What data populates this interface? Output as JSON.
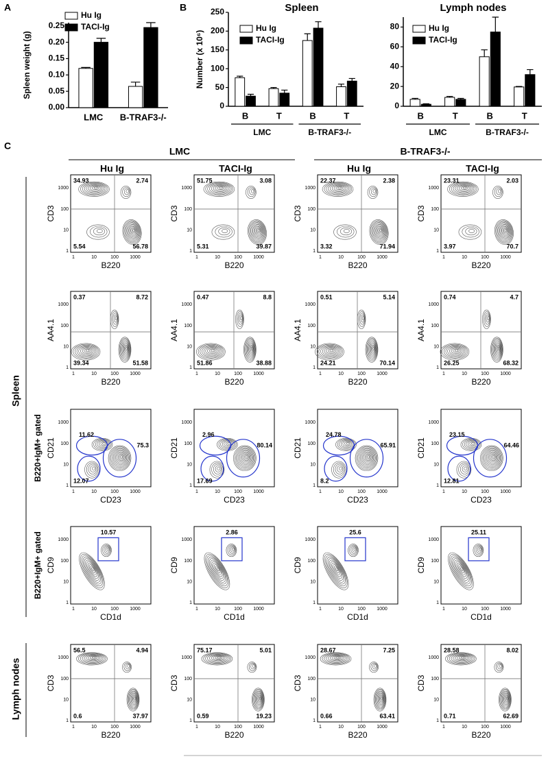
{
  "panel_labels": [
    "A",
    "B",
    "C"
  ],
  "chart_data": [
    {
      "type": "bar",
      "ylabel": "Spleen weight (g)",
      "categories": [
        "LMC",
        "B-TRAF3-/-"
      ],
      "ylim": [
        0,
        0.26
      ],
      "yticks": [
        {
          "value": 0,
          "label": "0.00"
        },
        {
          "value": 0.05,
          "label": "0.05"
        },
        {
          "value": 0.1,
          "label": "0.10"
        },
        {
          "value": 0.15,
          "label": "0.15"
        },
        {
          "value": 0.2,
          "label": "0.20"
        },
        {
          "value": 0.25,
          "label": "0.25"
        }
      ],
      "series": [
        {
          "name": "Hu Ig",
          "color": "#ffffff",
          "values": [
            0.12,
            0.065
          ],
          "errors": [
            0.003,
            0.013
          ]
        },
        {
          "name": "TACI-Ig",
          "color": "#000000",
          "values": [
            0.2,
            0.245
          ],
          "errors": [
            0.012,
            0.015
          ]
        }
      ]
    },
    {
      "type": "bar",
      "title": "Spleen",
      "ylabel": "Number (x 10⁶)",
      "categories": [
        "B",
        "T",
        "B",
        "T"
      ],
      "groups": [
        "LMC",
        "B-TRAF3-/-"
      ],
      "ylim": [
        0,
        250
      ],
      "yticks": [
        0,
        50,
        100,
        150,
        200,
        250
      ],
      "series": [
        {
          "name": "Hu Ig",
          "color": "#ffffff",
          "values": [
            76,
            47,
            175,
            52
          ],
          "errors": [
            4,
            3,
            18,
            7
          ]
        },
        {
          "name": "TACI-Ig",
          "color": "#000000",
          "values": [
            27,
            35,
            208,
            67
          ],
          "errors": [
            5,
            8,
            17,
            7
          ]
        }
      ]
    },
    {
      "type": "bar",
      "title": "Lymph nodes",
      "categories": [
        "B",
        "T",
        "B",
        "T"
      ],
      "groups": [
        "LMC",
        "B-TRAF3-/-"
      ],
      "ylim": [
        0,
        90
      ],
      "yticks": [
        0,
        20,
        40,
        60,
        80
      ],
      "series": [
        {
          "name": "Hu Ig",
          "color": "#ffffff",
          "values": [
            7,
            9,
            50,
            19.5
          ],
          "errors": [
            1,
            1,
            7,
            0.5
          ]
        },
        {
          "name": "TACI-Ig",
          "color": "#000000",
          "values": [
            2,
            7,
            75,
            32
          ],
          "errors": [
            0.5,
            1,
            15,
            5
          ]
        }
      ]
    }
  ],
  "flow": {
    "header_groups": [
      "LMC",
      "B-TRAF3-/-"
    ],
    "columns": [
      "Hu Ig",
      "TACI-Ig",
      "Hu Ig",
      "TACI-Ig"
    ],
    "tissues": [
      "Spleen",
      "Lymph nodes"
    ],
    "axis_ticks": [
      "1",
      "10",
      "100",
      "1000"
    ],
    "rows": [
      {
        "ylabel": "CD3",
        "xlabel": "B220",
        "plots": [
          {
            "labels": [
              "34.93",
              "2.74",
              "5.54",
              "56.78"
            ]
          },
          {
            "labels": [
              "51.75",
              "3.08",
              "5.31",
              "39.87"
            ]
          },
          {
            "labels": [
              "22.37",
              "2.38",
              "3.32",
              "71.94"
            ]
          },
          {
            "labels": [
              "23.31",
              "2.03",
              "3.97",
              "70.7"
            ]
          }
        ]
      },
      {
        "ylabel": "AA4.1",
        "xlabel": "B220",
        "plots": [
          {
            "labels": [
              "0.37",
              "8.72",
              "39.34",
              "51.58"
            ]
          },
          {
            "labels": [
              "0.47",
              "8.8",
              "51.86",
              "38.88"
            ]
          },
          {
            "labels": [
              "0.51",
              "5.14",
              "24.21",
              "70.14"
            ]
          },
          {
            "labels": [
              "0.74",
              "4.7",
              "26.25",
              "68.32"
            ]
          }
        ]
      },
      {
        "gate": "B220+IgM+ gated",
        "ylabel": "CD21",
        "xlabel": "CD23",
        "plots": [
          {
            "labels": [
              "11.62",
              "75.3",
              "12.07"
            ]
          },
          {
            "labels": [
              "2.96",
              "80.14",
              "17.69"
            ]
          },
          {
            "labels": [
              "24.78",
              "65.91",
              "8.2"
            ]
          },
          {
            "labels": [
              "23.15",
              "64.46",
              "12.81"
            ]
          }
        ]
      },
      {
        "gate": "B220+IgM+ gated",
        "ylabel": "CD9",
        "xlabel": "CD1d",
        "plots": [
          {
            "labels": [
              "10.57"
            ]
          },
          {
            "labels": [
              "2.86"
            ]
          },
          {
            "labels": [
              "25.6"
            ]
          },
          {
            "labels": [
              "25.11"
            ]
          }
        ]
      },
      {
        "ylabel": "CD3",
        "xlabel": "B220",
        "plots": [
          {
            "labels": [
              "56.5",
              "4.94",
              "0.6",
              "37.97"
            ]
          },
          {
            "labels": [
              "75.17",
              "5.01",
              "0.59",
              "19.23"
            ]
          },
          {
            "labels": [
              "28.67",
              "7.25",
              "0.66",
              "63.41"
            ]
          },
          {
            "labels": [
              "28.58",
              "8.02",
              "0.71",
              "62.69"
            ]
          }
        ]
      }
    ]
  }
}
